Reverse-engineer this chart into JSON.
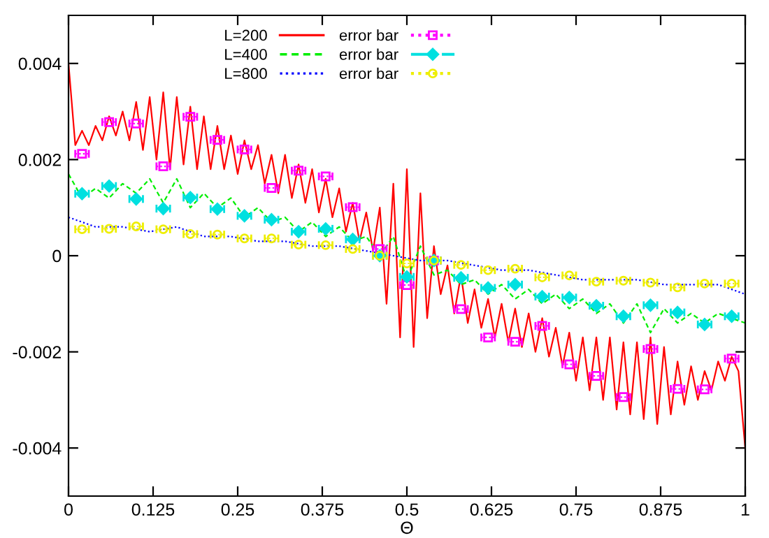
{
  "chart_data": {
    "type": "line",
    "xlabel": "Θ",
    "xlim": [
      0,
      1
    ],
    "ylim": [
      -0.005,
      0.005
    ],
    "xticks": [
      0,
      0.125,
      0.25,
      0.375,
      0.5,
      0.625,
      0.75,
      0.875,
      1
    ],
    "yticks": [
      -0.004,
      -0.002,
      {
        "value": 0,
        "label": "0"
      },
      0.002,
      0.004
    ],
    "grid": false,
    "legend": "top",
    "series": [
      {
        "name": "L=200",
        "color": "#ff0000",
        "line_style": "solid",
        "marker": "none",
        "x": [
          0.0,
          0.01,
          0.02,
          0.03,
          0.04,
          0.05,
          0.06,
          0.07,
          0.08,
          0.09,
          0.1,
          0.11,
          0.12,
          0.13,
          0.14,
          0.15,
          0.16,
          0.17,
          0.18,
          0.19,
          0.2,
          0.21,
          0.22,
          0.23,
          0.24,
          0.25,
          0.26,
          0.27,
          0.28,
          0.29,
          0.3,
          0.31,
          0.32,
          0.33,
          0.34,
          0.35,
          0.36,
          0.37,
          0.38,
          0.39,
          0.4,
          0.41,
          0.42,
          0.43,
          0.44,
          0.45,
          0.46,
          0.47,
          0.48,
          0.49,
          0.5,
          0.51,
          0.52,
          0.53,
          0.54,
          0.55,
          0.56,
          0.57,
          0.58,
          0.59,
          0.6,
          0.61,
          0.62,
          0.63,
          0.64,
          0.65,
          0.66,
          0.67,
          0.68,
          0.69,
          0.7,
          0.71,
          0.72,
          0.73,
          0.74,
          0.75,
          0.76,
          0.77,
          0.78,
          0.79,
          0.8,
          0.81,
          0.82,
          0.83,
          0.84,
          0.85,
          0.86,
          0.87,
          0.88,
          0.89,
          0.9,
          0.91,
          0.92,
          0.93,
          0.94,
          0.95,
          0.96,
          0.97,
          0.98,
          0.99,
          1.0
        ],
        "values": [
          0.004,
          0.0023,
          0.0026,
          0.0023,
          0.0027,
          0.0024,
          0.0029,
          0.0025,
          0.003,
          0.0024,
          0.0032,
          0.0022,
          0.0033,
          0.002,
          0.0034,
          0.0018,
          0.0033,
          0.0019,
          0.0031,
          0.0018,
          0.0029,
          0.0018,
          0.0027,
          0.0018,
          0.0025,
          0.0017,
          0.0024,
          0.0018,
          0.0023,
          0.0015,
          0.0021,
          0.0013,
          0.0021,
          0.0012,
          0.0019,
          0.0011,
          0.0018,
          0.0009,
          0.0016,
          0.0008,
          0.0014,
          0.0005,
          0.0011,
          0.0003,
          0.0009,
          0.0001,
          0.001,
          -0.001,
          0.0015,
          -0.0017,
          0.0018,
          -0.0019,
          0.0013,
          -0.0013,
          0.0002,
          -0.0008,
          -0.0002,
          -0.0012,
          -0.0004,
          -0.0014,
          -0.0007,
          -0.0015,
          -0.0009,
          -0.0017,
          -0.001,
          -0.0018,
          -0.0011,
          -0.0019,
          -0.0012,
          -0.002,
          -0.0013,
          -0.0021,
          -0.0015,
          -0.0023,
          -0.0016,
          -0.0026,
          -0.0017,
          -0.0028,
          -0.0017,
          -0.003,
          -0.0017,
          -0.0032,
          -0.0018,
          -0.0033,
          -0.0018,
          -0.0034,
          -0.0017,
          -0.0035,
          -0.0019,
          -0.0033,
          -0.0022,
          -0.0031,
          -0.0023,
          -0.003,
          -0.0024,
          -0.0028,
          -0.0022,
          -0.0026,
          -0.0021,
          -0.0024,
          -0.004
        ]
      },
      {
        "name": "L=400",
        "color": "#00ee00",
        "line_style": "dashed",
        "marker": "none",
        "x": [
          0.0,
          0.02,
          0.04,
          0.06,
          0.08,
          0.1,
          0.12,
          0.14,
          0.16,
          0.18,
          0.2,
          0.22,
          0.24,
          0.26,
          0.28,
          0.3,
          0.32,
          0.34,
          0.36,
          0.38,
          0.4,
          0.42,
          0.44,
          0.46,
          0.48,
          0.5,
          0.52,
          0.54,
          0.56,
          0.58,
          0.6,
          0.62,
          0.64,
          0.66,
          0.68,
          0.7,
          0.72,
          0.74,
          0.76,
          0.78,
          0.8,
          0.82,
          0.84,
          0.86,
          0.88,
          0.9,
          0.92,
          0.94,
          0.96,
          0.98,
          1.0
        ],
        "values": [
          0.0017,
          0.0012,
          0.0014,
          0.0012,
          0.0015,
          0.0013,
          0.0016,
          0.0011,
          0.0016,
          0.001,
          0.0013,
          0.001,
          0.0012,
          0.0008,
          0.001,
          0.0007,
          0.0008,
          0.0005,
          0.0007,
          0.0004,
          0.0006,
          0.0003,
          0.0004,
          0.0,
          0.0004,
          -0.0005,
          0.0002,
          -0.0004,
          -0.0003,
          -0.0006,
          -0.0005,
          -0.0008,
          -0.0006,
          -0.0009,
          -0.0007,
          -0.001,
          -0.0008,
          -0.0011,
          -0.0009,
          -0.0012,
          -0.001,
          -0.0014,
          -0.001,
          -0.0016,
          -0.0011,
          -0.0014,
          -0.0012,
          -0.0014,
          -0.0012,
          -0.0013,
          -0.0014
        ]
      },
      {
        "name": "L=800",
        "color": "#0000ff",
        "line_style": "dotted",
        "marker": "none",
        "x": [
          0.0,
          0.04,
          0.08,
          0.12,
          0.16,
          0.2,
          0.24,
          0.28,
          0.32,
          0.36,
          0.4,
          0.44,
          0.48,
          0.52,
          0.56,
          0.6,
          0.64,
          0.68,
          0.72,
          0.76,
          0.8,
          0.84,
          0.88,
          0.92,
          0.96,
          1.0
        ],
        "values": [
          0.0008,
          0.0006,
          0.0006,
          0.0005,
          0.0006,
          0.0004,
          0.0004,
          0.0003,
          0.0003,
          0.0002,
          0.0002,
          0.0001,
          0.0,
          -0.0001,
          -0.0001,
          -0.0002,
          -0.0003,
          -0.0003,
          -0.0004,
          -0.0005,
          -0.0005,
          -0.0005,
          -0.0006,
          -0.0006,
          -0.0006,
          -0.0008
        ]
      },
      {
        "name": "error bar",
        "type": "scatter",
        "color": "#ff00ff",
        "line_style": "dotted",
        "marker": "square",
        "x": [
          0.02,
          0.06,
          0.1,
          0.14,
          0.18,
          0.22,
          0.26,
          0.3,
          0.34,
          0.38,
          0.42,
          0.46,
          0.5,
          0.54,
          0.58,
          0.62,
          0.66,
          0.7,
          0.74,
          0.78,
          0.82,
          0.86,
          0.9,
          0.94,
          0.98
        ],
        "values": [
          0.00212,
          0.00278,
          0.00275,
          0.00186,
          0.00289,
          0.00241,
          0.00221,
          0.00141,
          0.00177,
          0.00165,
          0.00101,
          0.00014,
          -0.00061,
          -0.0001,
          -0.00111,
          -0.0017,
          -0.00179,
          -0.00146,
          -0.00226,
          -0.0025,
          -0.00294,
          -0.00194,
          -0.00277,
          -0.00278,
          -0.00214
        ],
        "xerrors": [
          0.01,
          0.01,
          0.01,
          0.01,
          0.01,
          0.01,
          0.01,
          0.01,
          0.01,
          0.01,
          0.01,
          0.01,
          0.01,
          0.01,
          0.01,
          0.01,
          0.01,
          0.01,
          0.01,
          0.01,
          0.01,
          0.01,
          0.01,
          0.01,
          0.01
        ]
      },
      {
        "name": "error bar",
        "type": "scatter",
        "color": "#00e0e0",
        "line_style": "dashdot",
        "marker": "diamond",
        "x": [
          0.02,
          0.06,
          0.1,
          0.14,
          0.18,
          0.22,
          0.26,
          0.3,
          0.34,
          0.38,
          0.42,
          0.46,
          0.5,
          0.54,
          0.58,
          0.62,
          0.66,
          0.7,
          0.74,
          0.78,
          0.82,
          0.86,
          0.9,
          0.94,
          0.98
        ],
        "values": [
          0.00129,
          0.00145,
          0.00118,
          0.00098,
          0.00121,
          0.00097,
          0.00083,
          0.00075,
          0.0005,
          0.00056,
          0.00034,
          0,
          -0.00044,
          -0.0001,
          -0.00046,
          -0.00067,
          -0.0006,
          -0.00085,
          -0.00087,
          -0.00104,
          -0.00126,
          -0.00103,
          -0.00118,
          -0.00143,
          -0.00126
        ],
        "xerrors": [
          0.01,
          0.01,
          0.01,
          0.01,
          0.01,
          0.01,
          0.01,
          0.01,
          0.01,
          0.01,
          0.01,
          0.01,
          0.01,
          0.01,
          0.01,
          0.01,
          0.01,
          0.01,
          0.01,
          0.01,
          0.01,
          0.01,
          0.01,
          0.01,
          0.01
        ]
      },
      {
        "name": "error bar",
        "type": "scatter",
        "color": "#eeee00",
        "line_style": "dotted",
        "marker": "circle",
        "x": [
          0.02,
          0.06,
          0.1,
          0.14,
          0.18,
          0.22,
          0.26,
          0.3,
          0.34,
          0.38,
          0.42,
          0.46,
          0.5,
          0.54,
          0.58,
          0.62,
          0.66,
          0.7,
          0.74,
          0.78,
          0.82,
          0.86,
          0.9,
          0.94,
          0.98
        ],
        "values": [
          0.00055,
          0.00056,
          0.00061,
          0.00055,
          0.00045,
          0.00044,
          0.00036,
          0.00036,
          0.00023,
          0.00022,
          0.00014,
          0,
          -0.00016,
          -0.0001,
          -0.00019,
          -0.0003,
          -0.00027,
          -0.00045,
          -0.00041,
          -0.00054,
          -0.00052,
          -0.00056,
          -0.00066,
          -0.00058,
          -0.00058
        ],
        "xerrors": [
          0.01,
          0.01,
          0.01,
          0.01,
          0.01,
          0.01,
          0.01,
          0.01,
          0.01,
          0.01,
          0.01,
          0.01,
          0.01,
          0.01,
          0.01,
          0.01,
          0.01,
          0.01,
          0.01,
          0.01,
          0.01,
          0.01,
          0.01,
          0.01,
          0.01
        ]
      }
    ]
  }
}
